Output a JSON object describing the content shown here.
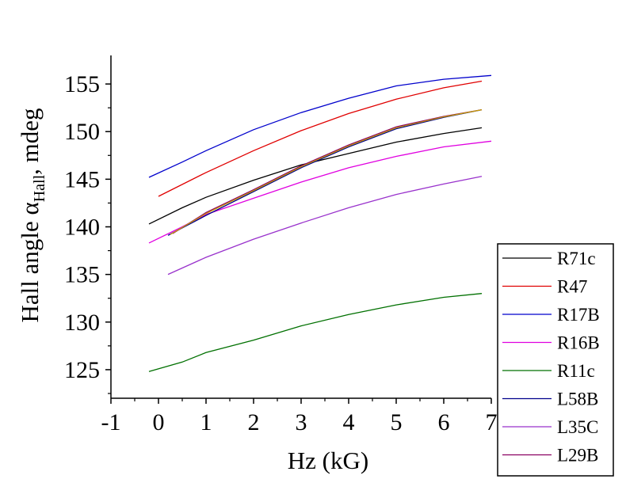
{
  "chart_data": {
    "type": "line",
    "xlabel": "Hz (kG)",
    "ylabel_main": "Hall angle α",
    "ylabel_sub": "Hall",
    "ylabel_tail": ", mdeg",
    "xlim": [
      -1,
      7
    ],
    "ylim": [
      122,
      158
    ],
    "x_ticks": [
      -1,
      0,
      1,
      2,
      3,
      4,
      5,
      6,
      7
    ],
    "y_ticks": [
      125,
      130,
      135,
      140,
      145,
      150,
      155
    ],
    "grid": false,
    "legend_position": "bottom-right",
    "series": [
      {
        "name": "R71c",
        "color": "#000000",
        "points": [
          [
            -0.2,
            140.3
          ],
          [
            0.5,
            142.0
          ],
          [
            1,
            143.1
          ],
          [
            2,
            144.9
          ],
          [
            3,
            146.5
          ],
          [
            4,
            147.7
          ],
          [
            5,
            148.9
          ],
          [
            6,
            149.8
          ],
          [
            6.8,
            150.4
          ]
        ]
      },
      {
        "name": "R47",
        "color": "#e00000",
        "points": [
          [
            0,
            143.2
          ],
          [
            1,
            145.7
          ],
          [
            2,
            148.0
          ],
          [
            3,
            150.1
          ],
          [
            4,
            151.9
          ],
          [
            5,
            153.4
          ],
          [
            6,
            154.6
          ],
          [
            6.8,
            155.3
          ]
        ]
      },
      {
        "name": "R17B",
        "color": "#0000cc",
        "points": [
          [
            -0.2,
            145.2
          ],
          [
            0.5,
            146.8
          ],
          [
            1,
            148.0
          ],
          [
            2,
            150.2
          ],
          [
            3,
            152.0
          ],
          [
            4,
            153.5
          ],
          [
            5,
            154.8
          ],
          [
            6,
            155.5
          ],
          [
            7,
            155.9
          ]
        ]
      },
      {
        "name": "R16B",
        "color": "#e000e0",
        "points": [
          [
            -0.2,
            138.3
          ],
          [
            0.5,
            140.0
          ],
          [
            1,
            141.3
          ],
          [
            2,
            143.0
          ],
          [
            3,
            144.7
          ],
          [
            4,
            146.2
          ],
          [
            5,
            147.4
          ],
          [
            6,
            148.4
          ],
          [
            7,
            149.0
          ]
        ]
      },
      {
        "name": "R11c",
        "color": "#007000",
        "points": [
          [
            -0.2,
            124.8
          ],
          [
            0.5,
            125.8
          ],
          [
            1,
            126.8
          ],
          [
            2,
            128.1
          ],
          [
            3,
            129.6
          ],
          [
            4,
            130.8
          ],
          [
            5,
            131.8
          ],
          [
            6,
            132.6
          ],
          [
            6.8,
            133.0
          ]
        ]
      },
      {
        "name": "L58B",
        "color": "#00008b",
        "points": [
          [
            0.2,
            139.1
          ],
          [
            1,
            141.2
          ],
          [
            2,
            143.7
          ],
          [
            3,
            146.2
          ],
          [
            4,
            148.4
          ],
          [
            5,
            150.3
          ],
          [
            6,
            151.5
          ],
          [
            6.8,
            152.3
          ]
        ]
      },
      {
        "name": "L35C",
        "color": "#9932cc",
        "points": [
          [
            0.2,
            135.0
          ],
          [
            1,
            136.8
          ],
          [
            2,
            138.7
          ],
          [
            3,
            140.4
          ],
          [
            4,
            142.0
          ],
          [
            5,
            143.4
          ],
          [
            6,
            144.5
          ],
          [
            6.8,
            145.3
          ]
        ]
      },
      {
        "name": "L29B",
        "color": "#8b0060",
        "points": [
          [
            0.3,
            139.3
          ],
          [
            1,
            141.5
          ],
          [
            2,
            143.9
          ],
          [
            3,
            146.4
          ],
          [
            4,
            148.6
          ],
          [
            5,
            150.5
          ],
          [
            6,
            151.6
          ],
          [
            6.8,
            152.3
          ]
        ]
      }
    ],
    "extra_overlay": {
      "color": "#c8a000",
      "points": [
        [
          0.25,
          139.2
        ],
        [
          1,
          141.4
        ],
        [
          2,
          143.8
        ],
        [
          3,
          146.3
        ],
        [
          4,
          148.5
        ],
        [
          5,
          150.4
        ],
        [
          6,
          151.55
        ],
        [
          6.8,
          152.3
        ]
      ]
    }
  }
}
